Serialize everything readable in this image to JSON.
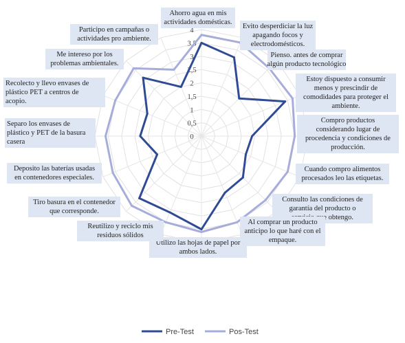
{
  "chart_data": {
    "type": "radar",
    "ylim": [
      0,
      4
    ],
    "ticks": [
      "0",
      "0,5",
      "1",
      "1,5",
      "2",
      "2,5",
      "3",
      "3,5",
      "4"
    ],
    "categories": [
      "Ahorro agua en mis actividades domésticas.",
      "Evito desperdiciar la luz apagando focos y electrodomésticos.",
      "Pienso. antes de comprar algún producto tecnológico",
      "Estoy dispuesto a consumir menos y prescindir de comodidades para proteger el ambiente.",
      "Compro productos considerando lugar de procedencia y condiciones de producción.",
      "Cuando compro alimentos procesados leo las etiquetas.",
      "Consulto las condiciones de garantía del producto o servicio que obtengo.",
      "Al comprar un producto anticipo lo que haré con el empaque.",
      "Utilizo las hojas de papel por ambos lados.",
      "Reutilizo y reciclo mis residuos sólidos",
      "Tiro basura en el contenedor que corresponde.",
      "Deposito las baterías usadas en contenedores especiales.",
      "Separo los envases de plástico y PET de la basura casera",
      "Recolecto y llevo envases de plástico PET a centros de acopio.",
      "Me intereso por los problemas ambientales.",
      "Participo en campañas o actividades pro ambiente."
    ],
    "series": [
      {
        "name": "Pre-Test",
        "color": "#2f4b93",
        "values": [
          3.5,
          3.2,
          2.0,
          3.4,
          1.9,
          1.8,
          2.2,
          2.3,
          3.5,
          3.1,
          3.3,
          1.8,
          2.3,
          2.2,
          3.1,
          2.0
        ]
      },
      {
        "name": "Pos-Test",
        "color": "#a7addb",
        "values": [
          3.8,
          3.8,
          3.6,
          3.7,
          3.5,
          3.5,
          3.4,
          3.5,
          3.6,
          3.5,
          3.7,
          3.6,
          3.6,
          3.5,
          3.6,
          2.7
        ]
      }
    ],
    "legend_position": "bottom"
  }
}
